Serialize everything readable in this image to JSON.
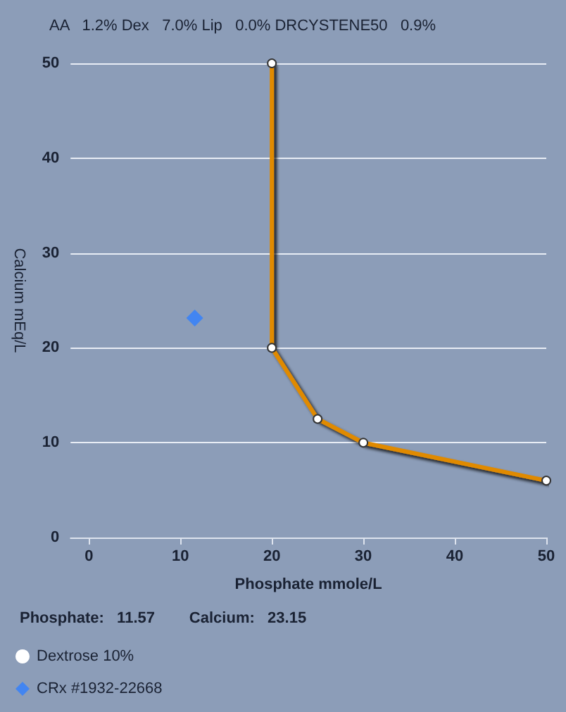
{
  "chart_data": {
    "type": "line",
    "title": "AA   1.2% Dex   7.0% Lip   0.0% DRCYSTENE50   0.9%",
    "xlabel": "Phosphate mmole/L",
    "ylabel": "Calcium mEq/L",
    "annotations": [
      "Phosphate:   11.57        Calcium:   23.15"
    ],
    "xlim": [
      -2,
      50
    ],
    "xticks": [
      0,
      10,
      20,
      30,
      40,
      50
    ],
    "ylim": [
      0,
      50
    ],
    "yticks": [
      0,
      10,
      20,
      30,
      40,
      50
    ],
    "grid": "y",
    "legend": "bottom left",
    "series": [
      {
        "name": "Dextrose 10%",
        "color": "#e08a00",
        "marker": "circle",
        "x": [
          20,
          20,
          25,
          30,
          50
        ],
        "values": [
          50,
          20,
          12.5,
          10,
          6
        ]
      },
      {
        "name": "CRx #1932-22668",
        "type": "scatter",
        "color": "#2f7fff",
        "marker": "diamond",
        "x": [
          11.57
        ],
        "values": [
          23.15
        ]
      }
    ]
  }
}
